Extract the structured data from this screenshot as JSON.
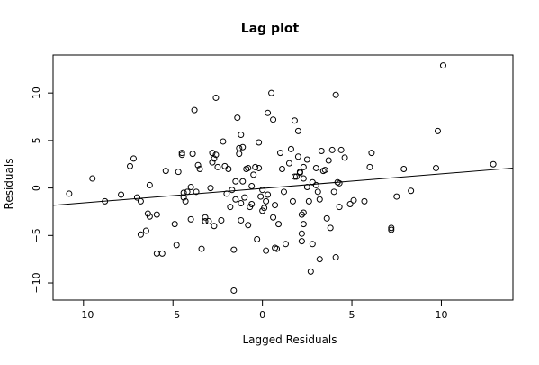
{
  "chart_data": {
    "type": "scatter",
    "title": "Lag plot",
    "xlabel": "Lagged Residuals",
    "ylabel": "Residuals",
    "xlim": [
      -11.7,
      14
    ],
    "ylim": [
      -11.8,
      14
    ],
    "xticks": [
      -10,
      -5,
      0,
      5,
      10
    ],
    "xtick_labels": [
      "−10",
      "−5",
      "0",
      "5",
      "10"
    ],
    "yticks": [
      -10,
      -5,
      0,
      5,
      10
    ],
    "ytick_labels": [
      "−10",
      "−5",
      "0",
      "5",
      "10"
    ],
    "grid": false,
    "legend": "none",
    "marker": "open-circle",
    "point_color": "#000000",
    "trend_line": {
      "slope": 0.153,
      "intercept": -0.04
    },
    "points": [
      [
        -10.8,
        -0.6
      ],
      [
        -8.8,
        -1.4
      ],
      [
        -7.9,
        -0.7
      ],
      [
        -7.4,
        2.3
      ],
      [
        -7.2,
        3.1
      ],
      [
        -6.8,
        -1.4
      ],
      [
        -6.8,
        -4.9
      ],
      [
        -6.5,
        -4.5
      ],
      [
        -6.4,
        -2.7
      ],
      [
        -6.3,
        0.3
      ],
      [
        -6.3,
        -3.0
      ],
      [
        -5.9,
        -2.8
      ],
      [
        -5.9,
        -6.9
      ],
      [
        -5.6,
        -6.9
      ],
      [
        -5.4,
        1.8
      ],
      [
        -4.9,
        -3.8
      ],
      [
        -4.8,
        -6.0
      ],
      [
        -4.7,
        1.7
      ],
      [
        -4.5,
        3.5
      ],
      [
        -4.5,
        3.7
      ],
      [
        -4.4,
        -0.5
      ],
      [
        -4.4,
        -1.0
      ],
      [
        -4.3,
        -1.4
      ],
      [
        -4.2,
        -0.4
      ],
      [
        -4.0,
        0.1
      ],
      [
        -4.0,
        -3.3
      ],
      [
        -3.9,
        3.6
      ],
      [
        -3.8,
        8.2
      ],
      [
        -3.7,
        -0.4
      ],
      [
        -3.6,
        2.4
      ],
      [
        -3.5,
        2.0
      ],
      [
        -3.4,
        -6.4
      ],
      [
        -3.2,
        -3.1
      ],
      [
        -3.2,
        -3.5
      ],
      [
        -3.0,
        -3.5
      ],
      [
        -2.9,
        0.0
      ],
      [
        -2.8,
        3.7
      ],
      [
        -2.8,
        2.7
      ],
      [
        -2.7,
        3.1
      ],
      [
        -2.7,
        -4.0
      ],
      [
        -2.6,
        3.5
      ],
      [
        -2.6,
        9.5
      ],
      [
        -2.5,
        2.2
      ],
      [
        -2.3,
        -3.4
      ],
      [
        -2.2,
        4.9
      ],
      [
        -2.1,
        2.3
      ],
      [
        -2.0,
        -0.6
      ],
      [
        -1.9,
        2.0
      ],
      [
        -1.8,
        -2.0
      ],
      [
        -1.7,
        -0.2
      ],
      [
        -1.6,
        -6.5
      ],
      [
        -1.6,
        -10.8
      ],
      [
        -1.5,
        -1.2
      ],
      [
        -1.5,
        0.7
      ],
      [
        -1.4,
        7.4
      ],
      [
        -1.3,
        4.2
      ],
      [
        -1.3,
        3.6
      ],
      [
        -1.2,
        -3.4
      ],
      [
        -1.2,
        -1.6
      ],
      [
        -1.2,
        5.6
      ],
      [
        -1.1,
        0.7
      ],
      [
        -1.1,
        4.3
      ],
      [
        -1.0,
        -1.0
      ],
      [
        -0.9,
        2.0
      ],
      [
        -0.8,
        2.1
      ],
      [
        -0.8,
        -3.9
      ],
      [
        -0.7,
        -2.0
      ],
      [
        -0.6,
        -1.7
      ],
      [
        -0.6,
        0.2
      ],
      [
        -0.5,
        1.4
      ],
      [
        -0.4,
        2.2
      ],
      [
        -0.3,
        -5.4
      ],
      [
        -0.2,
        4.8
      ],
      [
        -0.2,
        2.1
      ],
      [
        -0.1,
        -0.9
      ],
      [
        0.0,
        -2.4
      ],
      [
        0.0,
        -0.2
      ],
      [
        0.1,
        -2.1
      ],
      [
        0.2,
        -6.6
      ],
      [
        0.2,
        -1.4
      ],
      [
        0.3,
        -0.7
      ],
      [
        0.3,
        7.9
      ],
      [
        0.5,
        10.0
      ],
      [
        0.6,
        7.2
      ],
      [
        0.6,
        -3.1
      ],
      [
        0.7,
        -1.8
      ],
      [
        0.7,
        -6.3
      ],
      [
        0.8,
        -6.4
      ],
      [
        0.9,
        -3.8
      ],
      [
        1.0,
        3.7
      ],
      [
        1.1,
        2.0
      ],
      [
        1.2,
        -0.4
      ],
      [
        1.3,
        -5.9
      ],
      [
        1.5,
        2.6
      ],
      [
        1.6,
        4.1
      ],
      [
        1.7,
        -1.4
      ],
      [
        1.8,
        1.2
      ],
      [
        1.8,
        7.1
      ],
      [
        1.9,
        1.2
      ],
      [
        2.0,
        6.0
      ],
      [
        2.0,
        3.3
      ],
      [
        2.1,
        1.6
      ],
      [
        2.1,
        1.7
      ],
      [
        2.2,
        -4.8
      ],
      [
        2.2,
        -5.6
      ],
      [
        2.2,
        -2.8
      ],
      [
        2.3,
        -3.8
      ],
      [
        2.3,
        1.0
      ],
      [
        2.3,
        -2.6
      ],
      [
        2.3,
        2.2
      ],
      [
        2.5,
        3.0
      ],
      [
        2.5,
        0.1
      ],
      [
        2.6,
        -1.4
      ],
      [
        2.7,
        -8.8
      ],
      [
        2.8,
        -5.9
      ],
      [
        2.8,
        0.6
      ],
      [
        3.0,
        2.1
      ],
      [
        3.0,
        0.3
      ],
      [
        3.1,
        -0.4
      ],
      [
        3.2,
        -7.5
      ],
      [
        3.2,
        -1.2
      ],
      [
        3.3,
        3.9
      ],
      [
        3.4,
        1.8
      ],
      [
        3.5,
        1.9
      ],
      [
        3.6,
        -3.2
      ],
      [
        3.7,
        2.9
      ],
      [
        3.8,
        -4.2
      ],
      [
        3.9,
        4.0
      ],
      [
        4.0,
        -0.4
      ],
      [
        4.1,
        -7.3
      ],
      [
        4.1,
        9.8
      ],
      [
        4.2,
        0.6
      ],
      [
        4.3,
        0.5
      ],
      [
        4.3,
        -2.0
      ],
      [
        4.4,
        4.0
      ],
      [
        4.6,
        3.2
      ],
      [
        4.9,
        -1.7
      ],
      [
        5.1,
        -1.3
      ],
      [
        5.7,
        -1.4
      ],
      [
        6.0,
        2.2
      ],
      [
        6.1,
        3.7
      ],
      [
        7.2,
        -4.4
      ],
      [
        7.2,
        -4.2
      ],
      [
        7.5,
        -0.9
      ],
      [
        7.9,
        2.0
      ],
      [
        8.3,
        -0.3
      ],
      [
        9.7,
        2.1
      ],
      [
        9.8,
        6.0
      ],
      [
        10.1,
        12.9
      ],
      [
        12.9,
        2.5
      ],
      [
        -9.5,
        1.0
      ],
      [
        -7.0,
        -1.0
      ]
    ]
  }
}
